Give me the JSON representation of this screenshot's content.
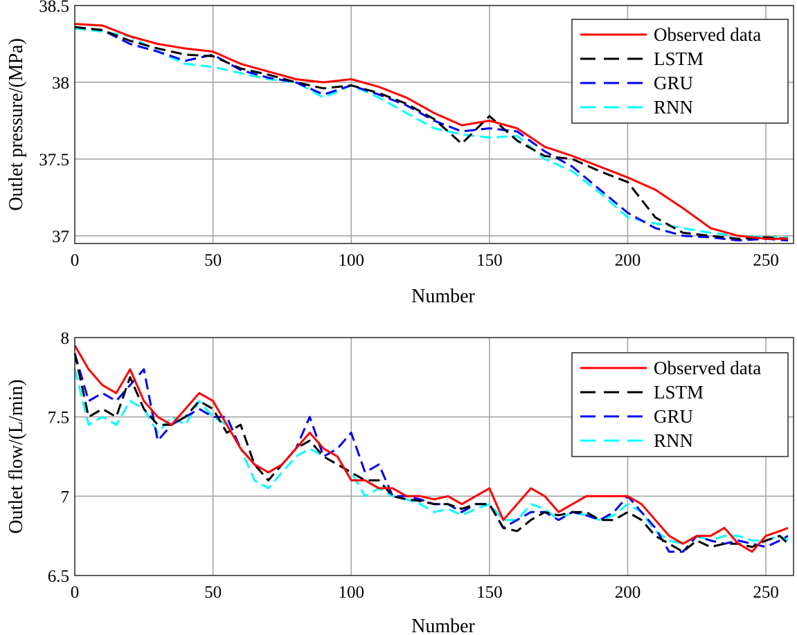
{
  "chart_data": [
    {
      "type": "line",
      "xlabel": "Number",
      "ylabel": "Outlet pressure/(MPa)",
      "xlim": [
        0,
        260
      ],
      "ylim": [
        36.95,
        38.5
      ],
      "xticks": [
        0,
        50,
        100,
        150,
        200,
        250
      ],
      "yticks": [
        37,
        37.5,
        38,
        38.5
      ],
      "ytick_labels": [
        "37",
        "37.5",
        "38",
        "38.5"
      ],
      "grid": true,
      "legend_position": "top-right",
      "x": [
        0,
        10,
        20,
        30,
        40,
        50,
        60,
        70,
        80,
        90,
        100,
        110,
        120,
        130,
        140,
        150,
        160,
        170,
        180,
        190,
        200,
        210,
        220,
        230,
        240,
        250,
        258
      ],
      "series": [
        {
          "name": "Observed data",
          "color": "#ff0000",
          "dash": "solid",
          "values": [
            38.38,
            38.37,
            38.3,
            38.25,
            38.22,
            38.2,
            38.12,
            38.07,
            38.02,
            38.0,
            38.02,
            37.97,
            37.9,
            37.8,
            37.72,
            37.75,
            37.7,
            37.58,
            37.52,
            37.45,
            37.38,
            37.3,
            37.18,
            37.05,
            37.0,
            36.98,
            36.98
          ]
        },
        {
          "name": "LSTM",
          "color": "#000000",
          "dash": "long",
          "values": [
            38.36,
            38.34,
            38.27,
            38.22,
            38.18,
            38.17,
            38.09,
            38.05,
            38.0,
            37.96,
            37.98,
            37.93,
            37.86,
            37.76,
            37.6,
            37.78,
            37.62,
            37.52,
            37.5,
            37.42,
            37.35,
            37.12,
            37.02,
            37.0,
            36.98,
            36.99,
            36.98
          ]
        },
        {
          "name": "GRU",
          "color": "#0000ee",
          "dash": "long",
          "values": [
            38.36,
            38.34,
            38.25,
            38.2,
            38.14,
            38.18,
            38.08,
            38.03,
            38.0,
            37.92,
            37.98,
            37.92,
            37.85,
            37.75,
            37.68,
            37.7,
            37.68,
            37.55,
            37.45,
            37.3,
            37.15,
            37.05,
            37.0,
            36.99,
            36.97,
            36.98,
            36.97
          ]
        },
        {
          "name": "RNN",
          "color": "#00ffff",
          "dash": "long",
          "values": [
            38.35,
            38.33,
            38.3,
            38.2,
            38.12,
            38.1,
            38.06,
            38.02,
            38.0,
            37.9,
            37.98,
            37.9,
            37.8,
            37.7,
            37.66,
            37.64,
            37.65,
            37.5,
            37.42,
            37.28,
            37.12,
            37.08,
            37.05,
            37.02,
            37.0,
            36.99,
            36.99
          ]
        }
      ]
    },
    {
      "type": "line",
      "xlabel": "Number",
      "ylabel": "Outlet flow/(L/min)",
      "xlim": [
        0,
        260
      ],
      "ylim": [
        6.5,
        8.0
      ],
      "xticks": [
        0,
        50,
        100,
        150,
        200,
        250
      ],
      "yticks": [
        6.5,
        7,
        7.5,
        8
      ],
      "ytick_labels": [
        "6.5",
        "7",
        "7.5",
        "8"
      ],
      "grid": true,
      "legend_position": "top-right",
      "x": [
        0,
        5,
        10,
        15,
        20,
        25,
        30,
        35,
        40,
        45,
        50,
        55,
        60,
        65,
        70,
        75,
        80,
        85,
        90,
        95,
        100,
        105,
        110,
        115,
        120,
        125,
        130,
        135,
        140,
        145,
        150,
        155,
        160,
        165,
        170,
        175,
        180,
        185,
        190,
        195,
        200,
        205,
        210,
        215,
        220,
        225,
        230,
        235,
        240,
        245,
        250,
        255,
        258
      ],
      "series": [
        {
          "name": "Observed data",
          "color": "#ff0000",
          "dash": "solid",
          "values": [
            7.95,
            7.8,
            7.7,
            7.65,
            7.8,
            7.6,
            7.5,
            7.45,
            7.55,
            7.65,
            7.6,
            7.45,
            7.3,
            7.2,
            7.15,
            7.2,
            7.3,
            7.4,
            7.3,
            7.25,
            7.1,
            7.1,
            7.05,
            7.05,
            7.0,
            7.0,
            6.98,
            7.0,
            6.95,
            7.0,
            7.05,
            6.85,
            6.95,
            7.05,
            7.0,
            6.9,
            6.95,
            7.0,
            7.0,
            7.0,
            7.0,
            6.95,
            6.85,
            6.75,
            6.7,
            6.75,
            6.75,
            6.8,
            6.7,
            6.65,
            6.75,
            6.78,
            6.8
          ]
        },
        {
          "name": "LSTM",
          "color": "#000000",
          "dash": "long",
          "values": [
            7.9,
            7.5,
            7.55,
            7.5,
            7.75,
            7.55,
            7.45,
            7.45,
            7.5,
            7.6,
            7.55,
            7.4,
            7.45,
            7.2,
            7.1,
            7.2,
            7.3,
            7.35,
            7.25,
            7.2,
            7.15,
            7.1,
            7.1,
            7.0,
            6.98,
            6.97,
            6.95,
            6.95,
            6.92,
            6.95,
            6.95,
            6.8,
            6.78,
            6.85,
            6.9,
            6.88,
            6.9,
            6.9,
            6.85,
            6.85,
            6.9,
            6.85,
            6.75,
            6.7,
            6.65,
            6.72,
            6.68,
            6.7,
            6.7,
            6.68,
            6.72,
            6.75,
            6.7
          ]
        },
        {
          "name": "GRU",
          "color": "#0000ee",
          "dash": "long",
          "values": [
            7.9,
            7.6,
            7.65,
            7.6,
            7.7,
            7.8,
            7.35,
            7.45,
            7.5,
            7.55,
            7.5,
            7.5,
            7.3,
            7.2,
            7.15,
            7.2,
            7.3,
            7.5,
            7.25,
            7.3,
            7.4,
            7.15,
            7.2,
            7.0,
            7.0,
            6.98,
            6.95,
            6.95,
            6.9,
            6.95,
            6.95,
            6.8,
            6.85,
            6.9,
            6.9,
            6.85,
            6.9,
            6.88,
            6.85,
            6.9,
            7.0,
            6.9,
            6.8,
            6.65,
            6.65,
            6.75,
            6.72,
            6.7,
            6.72,
            6.7,
            6.68,
            6.72,
            6.75
          ]
        },
        {
          "name": "RNN",
          "color": "#00ffff",
          "dash": "long",
          "values": [
            7.8,
            7.45,
            7.5,
            7.45,
            7.6,
            7.55,
            7.4,
            7.5,
            7.45,
            7.6,
            7.5,
            7.45,
            7.3,
            7.1,
            7.05,
            7.15,
            7.25,
            7.3,
            7.25,
            7.2,
            7.15,
            7.0,
            7.05,
            7.0,
            6.98,
            6.95,
            6.9,
            6.92,
            6.88,
            6.92,
            6.95,
            6.85,
            6.85,
            6.95,
            6.92,
            6.85,
            6.9,
            6.88,
            6.85,
            6.88,
            6.95,
            6.9,
            6.78,
            6.72,
            6.7,
            6.75,
            6.72,
            6.75,
            6.75,
            6.72,
            6.72,
            6.75,
            6.72
          ]
        }
      ]
    }
  ]
}
